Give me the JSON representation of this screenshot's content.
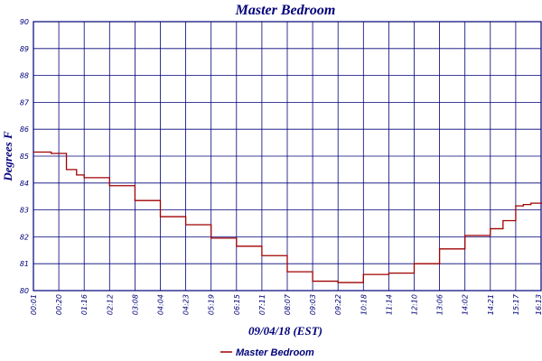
{
  "chart_data": {
    "type": "line",
    "title": "Master Bedroom",
    "xlabel": "09/04/18 (EST)",
    "ylabel": "Degrees F",
    "ylim": [
      80,
      90
    ],
    "y_ticks": [
      "80",
      "81",
      "82",
      "83",
      "84",
      "85",
      "86",
      "87",
      "88",
      "89",
      "90"
    ],
    "x_ticks": [
      "00:01",
      "00:20",
      "01:16",
      "02:12",
      "03:08",
      "04:04",
      "04:23",
      "05:19",
      "06:15",
      "07:11",
      "08:07",
      "09:03",
      "09:22",
      "10:18",
      "11:14",
      "12:10",
      "13:06",
      "14:02",
      "14:21",
      "15:17",
      "16:13",
      "16:13"
    ],
    "grid": true,
    "legend_position": "bottom",
    "series": [
      {
        "name": "Master Bedroom",
        "color": "#a00000",
        "x": [
          0,
          0.3,
          0.7,
          1.0,
          1.3,
          1.7,
          2.0,
          3.0,
          4.0,
          5.0,
          6.0,
          7.0,
          8.0,
          9.0,
          10.0,
          11.0,
          12.0,
          13.0,
          14.0,
          15.0,
          16.0,
          17.0,
          18.0,
          18.5,
          19.0,
          19.3,
          19.6,
          20.0,
          20.5,
          21.0
        ],
        "values": [
          85.15,
          85.15,
          85.1,
          85.1,
          84.5,
          84.3,
          84.2,
          83.9,
          83.35,
          82.75,
          82.45,
          81.95,
          81.65,
          81.3,
          80.7,
          80.35,
          80.3,
          80.6,
          80.65,
          81.0,
          81.55,
          82.05,
          82.3,
          82.6,
          83.15,
          83.2,
          83.25,
          83.25,
          83.3,
          83.35
        ]
      }
    ]
  }
}
